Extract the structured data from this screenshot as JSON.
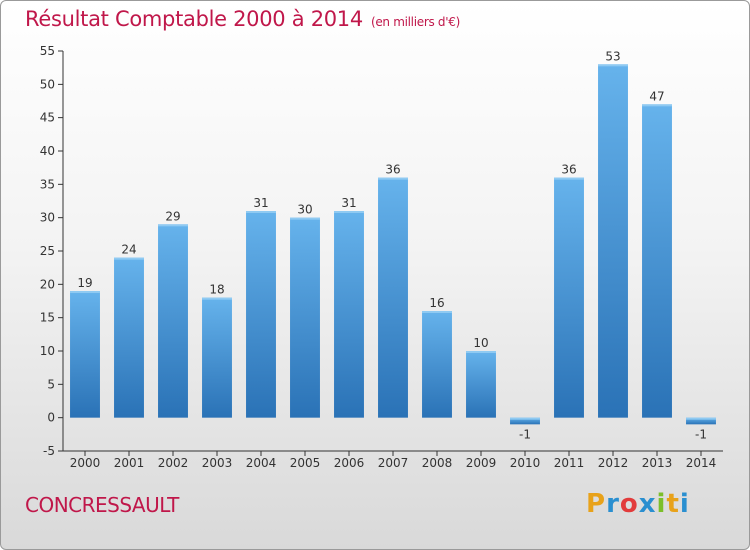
{
  "title": "Résultat Comptable 2000 à 2014",
  "subtitle": "(en milliers d'€)",
  "place": "CONCRESSAULT",
  "logo": {
    "chars": [
      "P",
      "r",
      "o",
      "x",
      "i",
      "t",
      "i"
    ],
    "colors": [
      "#e8a21a",
      "#2a8fd0",
      "#e23b3b",
      "#2a8fd0",
      "#7cbf2a",
      "#e8a21a",
      "#2a8fd0"
    ]
  },
  "colors": {
    "bar": "#3d8fd6",
    "bar_light": "#64b1ea",
    "bar_dark": "#2a70b4",
    "accent": "#c0174a"
  },
  "chart_data": {
    "type": "bar",
    "title": "Résultat Comptable 2000 à 2014",
    "subtitle": "(en milliers d'€)",
    "categories": [
      "2000",
      "2001",
      "2002",
      "2003",
      "2004",
      "2005",
      "2006",
      "2007",
      "2008",
      "2009",
      "2010",
      "2011",
      "2012",
      "2013",
      "2014"
    ],
    "values": [
      19,
      24,
      29,
      18,
      31,
      30,
      31,
      36,
      16,
      10,
      -1,
      36,
      53,
      47,
      -1
    ],
    "data_labels": [
      "19",
      "24",
      "29",
      "18",
      "31",
      "30",
      "31",
      "36",
      "16",
      "10",
      "-1",
      "36",
      "53",
      "47",
      "-1"
    ],
    "ylim": [
      -5,
      55
    ],
    "yticks": [
      -5,
      0,
      5,
      10,
      15,
      20,
      25,
      30,
      35,
      40,
      45,
      50,
      55
    ],
    "xlabel": "",
    "ylabel": "",
    "grid": false,
    "legend": "none"
  }
}
